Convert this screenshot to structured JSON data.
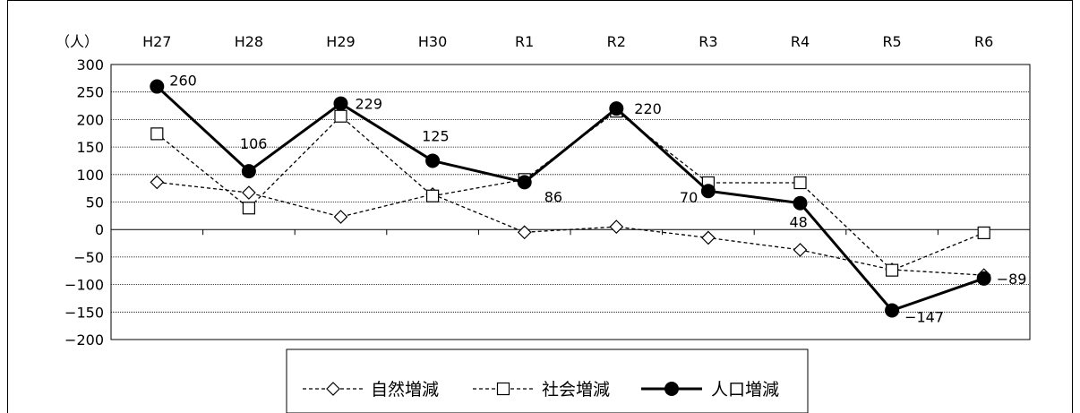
{
  "chart_data": {
    "type": "line",
    "categories": [
      "H27",
      "H28",
      "H29",
      "H30",
      "R1",
      "R2",
      "R3",
      "R4",
      "R5",
      "R6"
    ],
    "ylabel": "（人）",
    "ylim": [
      -200,
      300
    ],
    "yticks": [
      300,
      250,
      200,
      150,
      100,
      50,
      0,
      -50,
      -100,
      -150,
      -200
    ],
    "grid": true,
    "legend_position": "bottom",
    "series": [
      {
        "name": "自然増減",
        "values": [
          86,
          67,
          23,
          64,
          -5,
          5,
          -15,
          -37,
          -73,
          -83
        ],
        "style": "dashed",
        "marker": "diamond-open",
        "color": "#000000"
      },
      {
        "name": "社会増減",
        "values": [
          174,
          39,
          206,
          61,
          91,
          215,
          85,
          85,
          -74,
          -6
        ],
        "style": "dashed",
        "marker": "square-open",
        "color": "#000000"
      },
      {
        "name": "人口増減",
        "values": [
          260,
          106,
          229,
          125,
          86,
          220,
          70,
          48,
          -147,
          -89
        ],
        "style": "solid",
        "marker": "circle-filled",
        "color": "#000000",
        "data_labels": [
          "260",
          "106",
          "229",
          "125",
          "86",
          "220",
          "70",
          "48",
          "−147",
          "−89"
        ]
      }
    ]
  }
}
